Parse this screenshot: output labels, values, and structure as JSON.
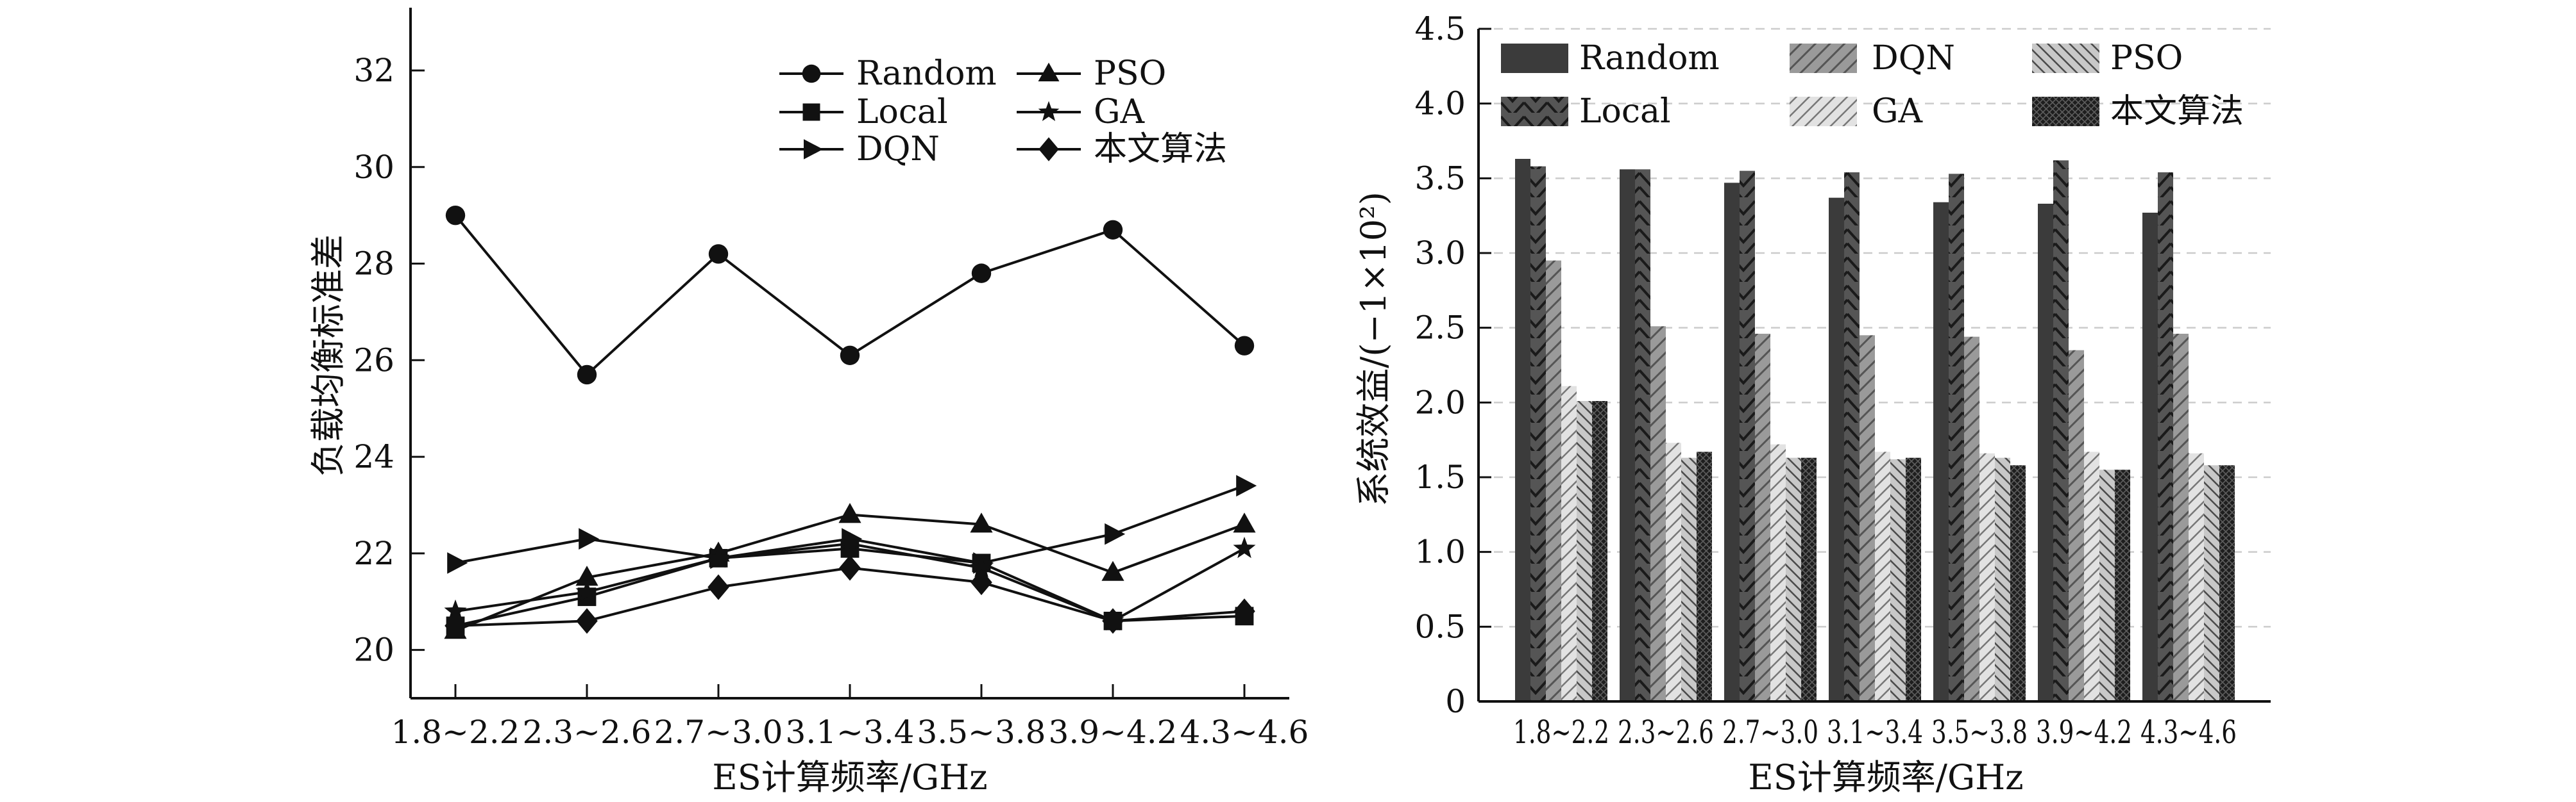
{
  "chart_data": [
    {
      "type": "line",
      "xlabel": "ES计算频率/GHz",
      "ylabel": "负载均衡标准差",
      "categories": [
        "1.8~2.2",
        "2.3~2.6",
        "2.7~3.0",
        "3.1~3.4",
        "3.5~3.8",
        "3.9~4.2",
        "4.3~4.6"
      ],
      "ylim": [
        19.0,
        33.3
      ],
      "yticks": [
        20,
        22,
        24,
        26,
        28,
        30,
        32
      ],
      "grid": false,
      "legend_position": "top-right",
      "series": [
        {
          "name": "Random",
          "marker": "circle",
          "values": [
            29.0,
            25.7,
            28.2,
            26.1,
            27.8,
            28.7,
            26.3
          ]
        },
        {
          "name": "Local",
          "marker": "square",
          "values": [
            20.5,
            21.1,
            21.9,
            22.1,
            21.8,
            20.6,
            20.7
          ]
        },
        {
          "name": "DQN",
          "marker": "triangle-right",
          "values": [
            21.8,
            22.3,
            21.9,
            22.3,
            21.8,
            22.4,
            23.4
          ]
        },
        {
          "name": "PSO",
          "marker": "triangle-up",
          "values": [
            20.4,
            21.5,
            22.0,
            22.8,
            22.6,
            21.6,
            22.6
          ]
        },
        {
          "name": "GA",
          "marker": "star",
          "values": [
            20.8,
            21.2,
            21.9,
            22.2,
            21.7,
            20.6,
            22.1
          ]
        },
        {
          "name": "本文算法",
          "marker": "diamond",
          "values": [
            20.5,
            20.6,
            21.3,
            21.7,
            21.4,
            20.6,
            20.8
          ]
        }
      ]
    },
    {
      "type": "bar",
      "xlabel": "ES计算频率/GHz",
      "ylabel": "系统效益/(−1×10²)",
      "categories": [
        "1.8~2.2",
        "2.3~2.6",
        "2.7~3.0",
        "3.1~3.4",
        "3.5~3.8",
        "3.9~4.2",
        "4.3~4.6"
      ],
      "ylim": [
        0,
        4.5
      ],
      "yticks": [
        "0",
        "0.5",
        "1.0",
        "1.5",
        "2.0",
        "2.5",
        "3.0",
        "3.5",
        "4.0",
        "4.5"
      ],
      "grid": true,
      "legend_position": "top",
      "series": [
        {
          "name": "Random",
          "pattern": "solid-dark",
          "values": [
            3.63,
            3.56,
            3.47,
            3.37,
            3.34,
            3.33,
            3.27
          ]
        },
        {
          "name": "Local",
          "pattern": "dark-chevron",
          "values": [
            3.58,
            3.56,
            3.55,
            3.54,
            3.53,
            3.62,
            3.54
          ]
        },
        {
          "name": "DQN",
          "pattern": "gray-diagonal",
          "values": [
            2.95,
            2.51,
            2.46,
            2.45,
            2.44,
            2.35,
            2.46
          ]
        },
        {
          "name": "GA",
          "pattern": "light-diagonal",
          "values": [
            2.11,
            1.73,
            1.72,
            1.67,
            1.66,
            1.67,
            1.66
          ]
        },
        {
          "name": "PSO",
          "pattern": "gray-backslash",
          "values": [
            2.01,
            1.63,
            1.63,
            1.62,
            1.63,
            1.55,
            1.58
          ]
        },
        {
          "name": "本文算法",
          "pattern": "dark-crosshatch",
          "values": [
            2.01,
            1.67,
            1.63,
            1.63,
            1.58,
            1.55,
            1.58
          ]
        }
      ]
    }
  ]
}
